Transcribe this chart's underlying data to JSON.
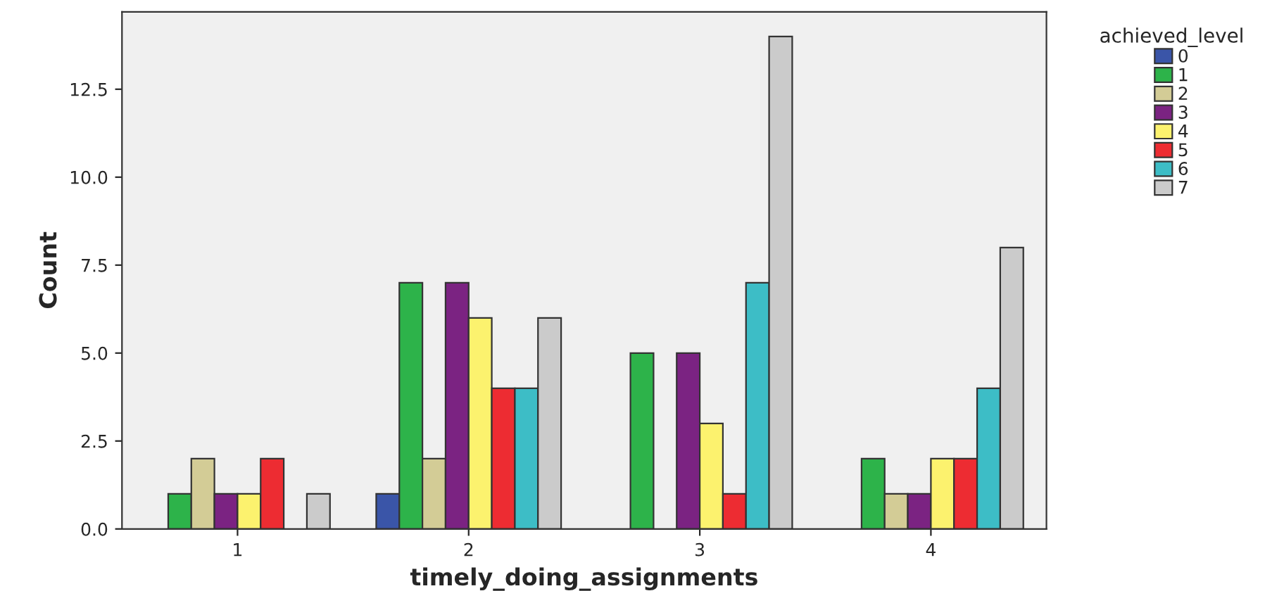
{
  "chart_data": {
    "type": "bar",
    "xlabel": "timely_doing_assignments",
    "ylabel": "Count",
    "legend_title": "achieved_level",
    "categories": [
      "1",
      "2",
      "3",
      "4"
    ],
    "series": [
      {
        "name": "0",
        "color": "#3a55a8",
        "values": [
          null,
          1,
          null,
          null
        ]
      },
      {
        "name": "1",
        "color": "#2db34a",
        "values": [
          1,
          7,
          5,
          2
        ]
      },
      {
        "name": "2",
        "color": "#d3cc96",
        "values": [
          2,
          2,
          null,
          1
        ]
      },
      {
        "name": "3",
        "color": "#7b2382",
        "values": [
          1,
          7,
          5,
          1
        ]
      },
      {
        "name": "4",
        "color": "#fcf26e",
        "values": [
          1,
          6,
          3,
          2
        ]
      },
      {
        "name": "5",
        "color": "#ed2c32",
        "values": [
          2,
          4,
          1,
          2
        ]
      },
      {
        "name": "6",
        "color": "#3dbdc6",
        "values": [
          null,
          4,
          7,
          4
        ]
      },
      {
        "name": "7",
        "color": "#cbcbcb",
        "values": [
          1,
          6,
          14,
          8
        ]
      }
    ],
    "ylim": [
      0,
      14.7
    ],
    "yticks": [
      {
        "value": 0,
        "label": "0.0"
      },
      {
        "value": 2.5,
        "label": "2.5"
      },
      {
        "value": 5,
        "label": "5.0"
      },
      {
        "value": 7.5,
        "label": "7.5"
      },
      {
        "value": 10,
        "label": "10.0"
      },
      {
        "value": 12.5,
        "label": "12.5"
      }
    ],
    "grid": false,
    "legend": "top right"
  }
}
